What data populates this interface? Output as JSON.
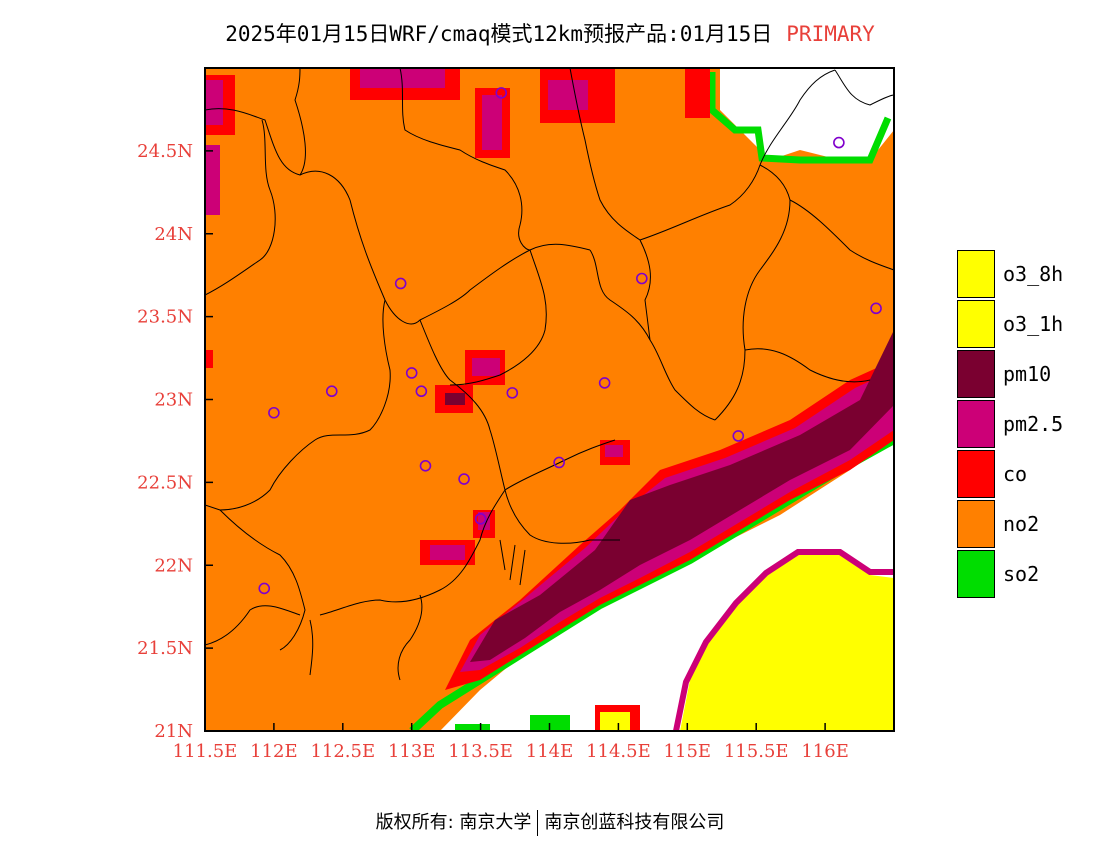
{
  "title": {
    "main": "2025年01月15日WRF/cmaq模式12km预报产品:01月15日",
    "tag": "PRIMARY"
  },
  "colors": {
    "o3_8h": "#ffff00",
    "o3_1h": "#ffff00",
    "pm10": "#7a0030",
    "pm25": "#cc0077",
    "co": "#ff0000",
    "no2": "#ff8000",
    "so2": "#00dd00",
    "no_data": "#ffffff",
    "tick_label": "#e8403a"
  },
  "legend": [
    {
      "label": "o3_8h",
      "color": "#ffff00"
    },
    {
      "label": "o3_1h",
      "color": "#ffff00"
    },
    {
      "label": "pm10",
      "color": "#7a0030"
    },
    {
      "label": "pm2.5",
      "color": "#cc0077"
    },
    {
      "label": "co",
      "color": "#ff0000"
    },
    {
      "label": "no2",
      "color": "#ff8000"
    },
    {
      "label": "so2",
      "color": "#00dd00"
    }
  ],
  "axes": {
    "x_ticks": [
      "111.5E",
      "112E",
      "112.5E",
      "113E",
      "113.5E",
      "114E",
      "114.5E",
      "115E",
      "115.5E",
      "116E"
    ],
    "x_values": [
      111.5,
      112,
      112.5,
      113,
      113.5,
      114,
      114.5,
      115,
      115.5,
      116
    ],
    "y_ticks": [
      "21N",
      "21.5N",
      "22N",
      "22.5N",
      "23N",
      "23.5N",
      "24N",
      "24.5N"
    ],
    "y_values": [
      21,
      21.5,
      22,
      22.5,
      23,
      23.5,
      24,
      24.5
    ],
    "xlim": [
      111.5,
      116.5
    ],
    "ylim": [
      21,
      25
    ]
  },
  "stations": [
    {
      "lon": 113.65,
      "lat": 24.85
    },
    {
      "lon": 116.1,
      "lat": 24.55
    },
    {
      "lon": 112.0,
      "lat": 22.92
    },
    {
      "lon": 112.42,
      "lat": 23.05
    },
    {
      "lon": 112.92,
      "lat": 23.7
    },
    {
      "lon": 113.07,
      "lat": 23.05
    },
    {
      "lon": 113.0,
      "lat": 23.16
    },
    {
      "lon": 113.73,
      "lat": 23.04
    },
    {
      "lon": 114.4,
      "lat": 23.1
    },
    {
      "lon": 114.67,
      "lat": 23.73
    },
    {
      "lon": 113.1,
      "lat": 22.6
    },
    {
      "lon": 113.38,
      "lat": 22.52
    },
    {
      "lon": 114.07,
      "lat": 22.62
    },
    {
      "lon": 113.5,
      "lat": 22.28
    },
    {
      "lon": 111.93,
      "lat": 21.86
    },
    {
      "lon": 115.37,
      "lat": 22.78
    },
    {
      "lon": 116.37,
      "lat": 23.55
    }
  ],
  "footer": {
    "left": "版权所有: 南京大学",
    "right": "南京创蓝科技有限公司"
  }
}
